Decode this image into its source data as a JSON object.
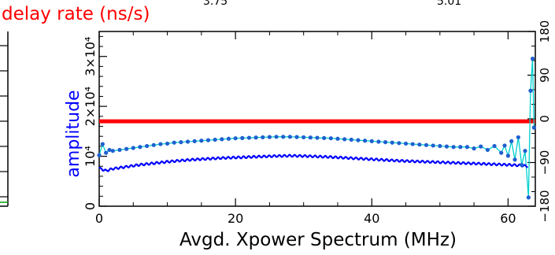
{
  "chart_data": {
    "type": "line",
    "title": "delay rate (ns/s)",
    "header_fragments": [
      "3.75",
      "5.01"
    ],
    "xlabel": "Avgd. Xpower Spectrum (MHz)",
    "ylabel": "amplitude",
    "xlim": [
      0,
      64
    ],
    "ylim": [
      0,
      35000
    ],
    "y2lim": [
      -180,
      180
    ],
    "x_ticks": [
      0,
      20,
      40,
      60
    ],
    "x_tick_labels": [
      "0",
      "20",
      "40",
      "60"
    ],
    "y_ticks": [
      0,
      10000,
      20000,
      30000
    ],
    "y_tick_labels": [
      "0",
      "10⁴",
      "2×10⁴",
      "3×10⁴"
    ],
    "y2_ticks": [
      -180,
      -90,
      0,
      90,
      180
    ],
    "y2_tick_labels": [
      "−180",
      "−90",
      "0",
      "90",
      "180"
    ],
    "grid": false,
    "colors": {
      "amplitude": "#0000ff",
      "phase": "#00d0d0",
      "phase_marker": "#1f5fd0",
      "reference": "#ff0000",
      "left_trace": "#00a000"
    },
    "series": [
      {
        "role": "amplitude",
        "points": [
          [
            0,
            7600
          ],
          [
            1,
            7100
          ],
          [
            2,
            7500
          ],
          [
            4,
            7900
          ],
          [
            6,
            8300
          ],
          [
            8,
            8600
          ],
          [
            10,
            8900
          ],
          [
            12,
            9150
          ],
          [
            14,
            9350
          ],
          [
            16,
            9500
          ],
          [
            18,
            9650
          ],
          [
            20,
            9750
          ],
          [
            22,
            9850
          ],
          [
            24,
            9950
          ],
          [
            26,
            10050
          ],
          [
            28,
            10100
          ],
          [
            30,
            10050
          ],
          [
            32,
            9950
          ],
          [
            34,
            9850
          ],
          [
            36,
            9700
          ],
          [
            38,
            9550
          ],
          [
            40,
            9400
          ],
          [
            42,
            9250
          ],
          [
            44,
            9100
          ],
          [
            46,
            9000
          ],
          [
            48,
            8900
          ],
          [
            50,
            8800
          ],
          [
            52,
            8700
          ],
          [
            54,
            8600
          ],
          [
            56,
            8500
          ],
          [
            58,
            8400
          ],
          [
            60,
            8300
          ],
          [
            62,
            8150
          ],
          [
            63,
            8000
          ]
        ]
      },
      {
        "role": "phase",
        "points": [
          [
            0,
            -75
          ],
          [
            0.5,
            -52
          ],
          [
            1,
            -70
          ],
          [
            1.5,
            -64
          ],
          [
            2,
            -66
          ],
          [
            3,
            -64
          ],
          [
            4,
            -62
          ],
          [
            5,
            -60
          ],
          [
            6,
            -58
          ],
          [
            7,
            -56
          ],
          [
            8,
            -54
          ],
          [
            9,
            -52
          ],
          [
            10,
            -51
          ],
          [
            11,
            -49
          ],
          [
            12,
            -48
          ],
          [
            13,
            -47
          ],
          [
            14,
            -46
          ],
          [
            15,
            -45
          ],
          [
            16,
            -44
          ],
          [
            17,
            -43
          ],
          [
            18,
            -42
          ],
          [
            19,
            -41
          ],
          [
            20,
            -40
          ],
          [
            21,
            -39.5
          ],
          [
            22,
            -39
          ],
          [
            23,
            -38.5
          ],
          [
            24,
            -38
          ],
          [
            25,
            -37.5
          ],
          [
            26,
            -37
          ],
          [
            27,
            -37
          ],
          [
            28,
            -37
          ],
          [
            29,
            -37.5
          ],
          [
            30,
            -38
          ],
          [
            31,
            -38.5
          ],
          [
            32,
            -39
          ],
          [
            33,
            -39.5
          ],
          [
            34,
            -40
          ],
          [
            35,
            -41
          ],
          [
            36,
            -42
          ],
          [
            37,
            -43
          ],
          [
            38,
            -44
          ],
          [
            39,
            -45
          ],
          [
            40,
            -46
          ],
          [
            41,
            -47
          ],
          [
            42,
            -48
          ],
          [
            43,
            -49
          ],
          [
            44,
            -50
          ],
          [
            45,
            -51
          ],
          [
            46,
            -52
          ],
          [
            47,
            -53
          ],
          [
            48,
            -54
          ],
          [
            49,
            -55
          ],
          [
            50,
            -56
          ],
          [
            51,
            -57
          ],
          [
            52,
            -58
          ],
          [
            53,
            -58
          ],
          [
            54,
            -58
          ],
          [
            55,
            -61
          ],
          [
            56,
            -57
          ],
          [
            57,
            -64
          ],
          [
            58,
            -56
          ],
          [
            59,
            -70
          ],
          [
            59.5,
            -55
          ],
          [
            60,
            -76
          ],
          [
            60.5,
            -46
          ],
          [
            61,
            -84
          ],
          [
            61.5,
            -38
          ],
          [
            62,
            -95
          ],
          [
            62.5,
            -66
          ],
          [
            63,
            -162
          ],
          [
            63.3,
            58
          ],
          [
            63.6,
            124
          ],
          [
            63.8,
            -18
          ]
        ]
      },
      {
        "role": "reference",
        "points": [
          [
            0,
            17000
          ],
          [
            64,
            17000
          ]
        ]
      }
    ]
  }
}
